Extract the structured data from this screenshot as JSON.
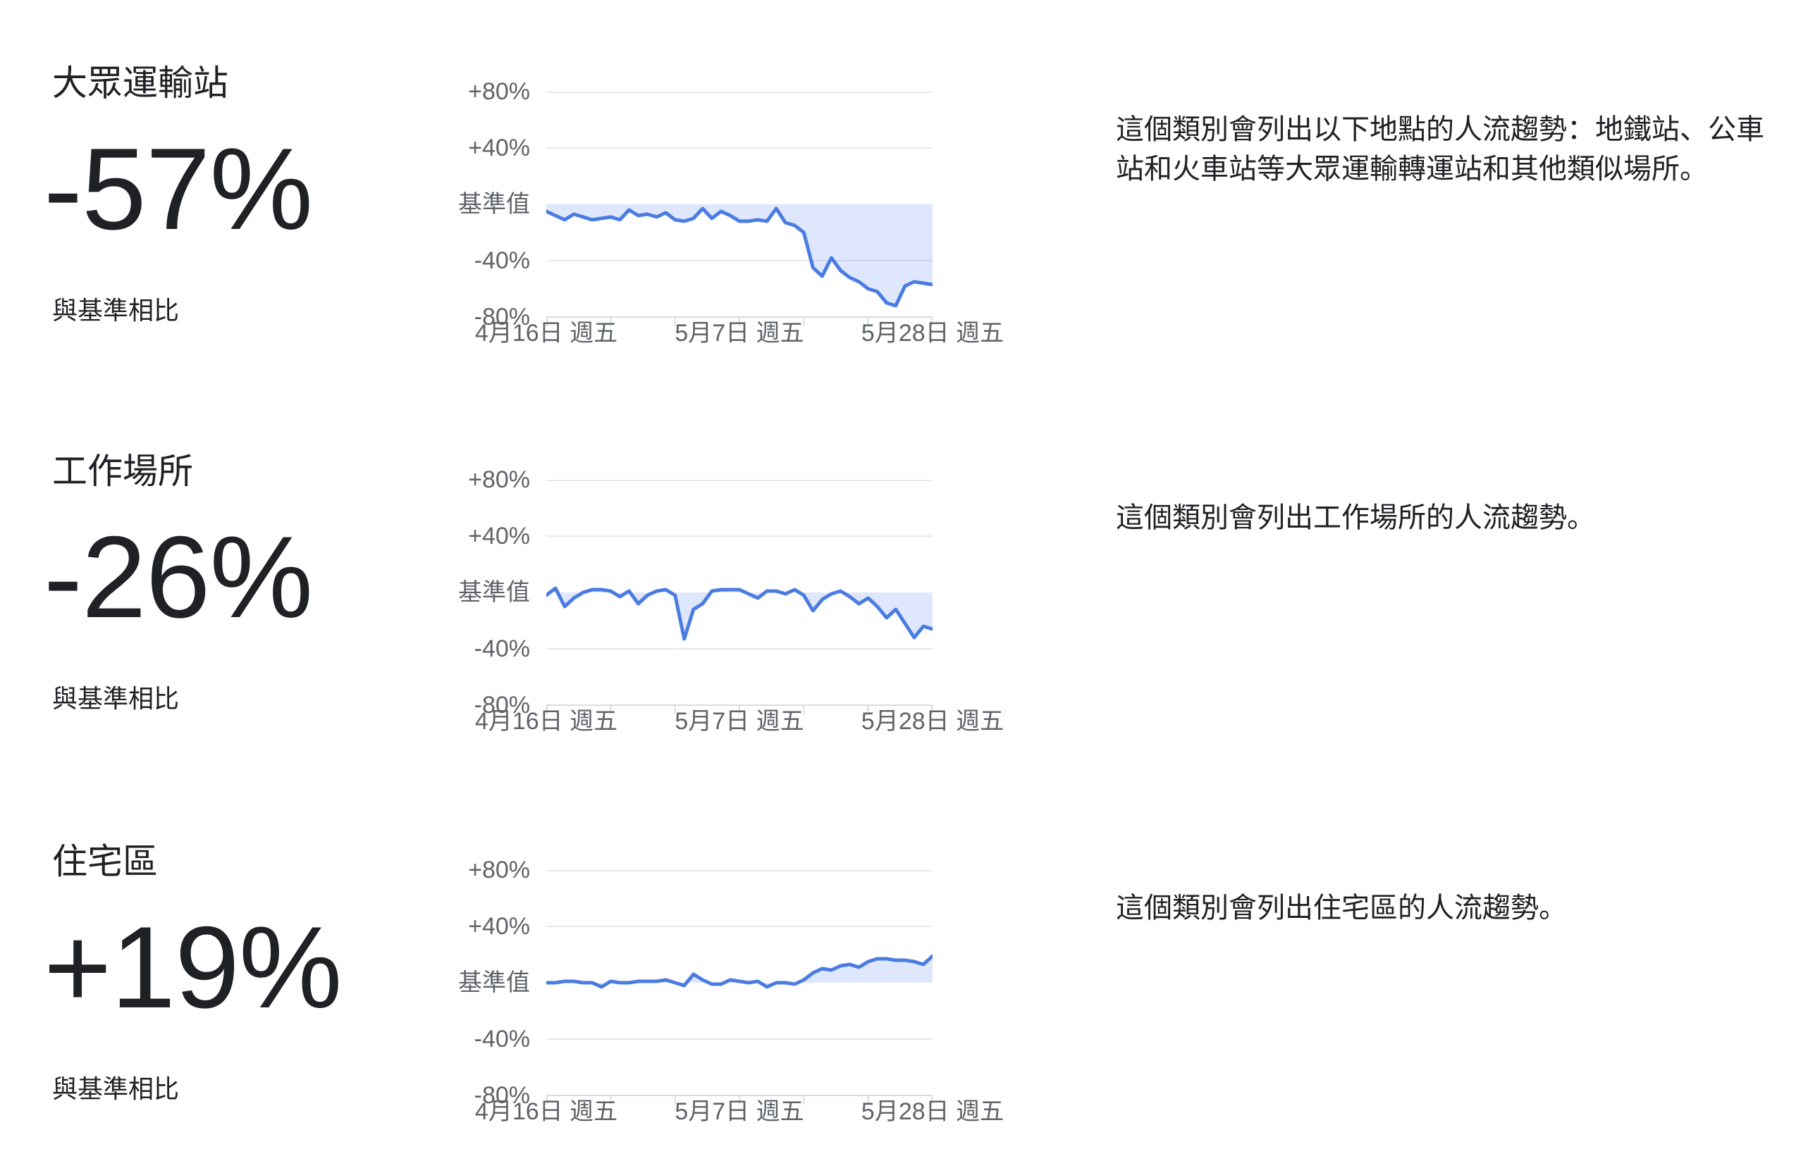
{
  "colors": {
    "background": "#ffffff",
    "text_dark": "#202124",
    "axis_label": "#5f6368",
    "gridline": "#e8e8e8",
    "axis_line": "#dadce0",
    "line": "#4b7ce2",
    "fill": "rgba(70,120,230,0.175)"
  },
  "sections": [
    {
      "title": "大眾運輸站",
      "value": "-57%",
      "caption": "與基準相比",
      "description": "這個類別會列出以下地點的人流趨勢：地鐵站、公車站和火車站等大眾運輸轉運站和其他類似場所。"
    },
    {
      "title": "工作場所",
      "value": "-26%",
      "caption": "與基準相比",
      "description": "這個類別會列出工作場所的人流趨勢。"
    },
    {
      "title": "住宅區",
      "value": "+19%",
      "caption": "與基準相比",
      "description": "這個類別會列出住宅區的人流趨勢。"
    }
  ],
  "chart_data": [
    {
      "type": "line",
      "title": "大眾運輸站",
      "current_change_pct": -57,
      "ylabel": "與基準相比 (%)",
      "ylim": [
        -80,
        80
      ],
      "baseline": 0,
      "grid": true,
      "legend_position": "none",
      "gridline_values": [
        80,
        40,
        -40
      ],
      "y_tick_labels": [
        "+80%",
        "+40%",
        "基準值",
        "-40%",
        "-80%"
      ],
      "num_x_ticks": 7,
      "x_tick_labels": [
        "4月16日 週五",
        "5月7日 週五",
        "5月28日 週五"
      ],
      "x_tick_label_positions": [
        0,
        3,
        6
      ],
      "values": [
        -5,
        -8,
        -11,
        -7,
        -9,
        -11,
        -10,
        -9,
        -11,
        -4,
        -8,
        -7,
        -9,
        -6,
        -11,
        -12,
        -10,
        -3,
        -10,
        -5,
        -8,
        -12,
        -12,
        -11,
        -12,
        -3,
        -13,
        -15,
        -20,
        -45,
        -51,
        -38,
        -47,
        -52,
        -55,
        -60,
        -62,
        -70,
        -72,
        -58,
        -55,
        -56,
        -57
      ]
    },
    {
      "type": "line",
      "title": "工作場所",
      "current_change_pct": -26,
      "ylabel": "與基準相比 (%)",
      "ylim": [
        -80,
        80
      ],
      "baseline": 0,
      "grid": true,
      "legend_position": "none",
      "gridline_values": [
        80,
        40,
        -40
      ],
      "y_tick_labels": [
        "+80%",
        "+40%",
        "基準值",
        "-40%",
        "-80%"
      ],
      "num_x_ticks": 7,
      "x_tick_labels": [
        "4月16日 週五",
        "5月7日 週五",
        "5月28日 週五"
      ],
      "x_tick_label_positions": [
        0,
        3,
        6
      ],
      "values": [
        -2,
        3,
        -10,
        -4,
        0,
        2,
        2,
        1,
        -3,
        1,
        -8,
        -2,
        1,
        2,
        -2,
        -33,
        -12,
        -8,
        1,
        2,
        2,
        2,
        -1,
        -4,
        1,
        1,
        -1,
        2,
        -2,
        -13,
        -5,
        -1,
        1,
        -3,
        -8,
        -4,
        -10,
        -18,
        -12,
        -22,
        -32,
        -24,
        -26
      ]
    },
    {
      "type": "line",
      "title": "住宅區",
      "current_change_pct": 19,
      "ylabel": "與基準相比 (%)",
      "ylim": [
        -80,
        80
      ],
      "baseline": 0,
      "grid": true,
      "legend_position": "none",
      "gridline_values": [
        80,
        40,
        -40
      ],
      "y_tick_labels": [
        "+80%",
        "+40%",
        "基準值",
        "-40%",
        "-80%"
      ],
      "num_x_ticks": 7,
      "x_tick_labels": [
        "4月16日 週五",
        "5月7日 週五",
        "5月28日 週五"
      ],
      "x_tick_label_positions": [
        0,
        3,
        6
      ],
      "values": [
        0,
        0,
        1,
        1,
        0,
        0,
        -3,
        1,
        0,
        0,
        1,
        1,
        1,
        2,
        0,
        -2,
        6,
        2,
        -1,
        -1,
        2,
        1,
        0,
        1,
        -3,
        0,
        0,
        -1,
        2,
        7,
        10,
        9,
        12,
        13,
        11,
        15,
        17,
        17,
        16,
        16,
        15,
        13,
        19
      ]
    }
  ]
}
